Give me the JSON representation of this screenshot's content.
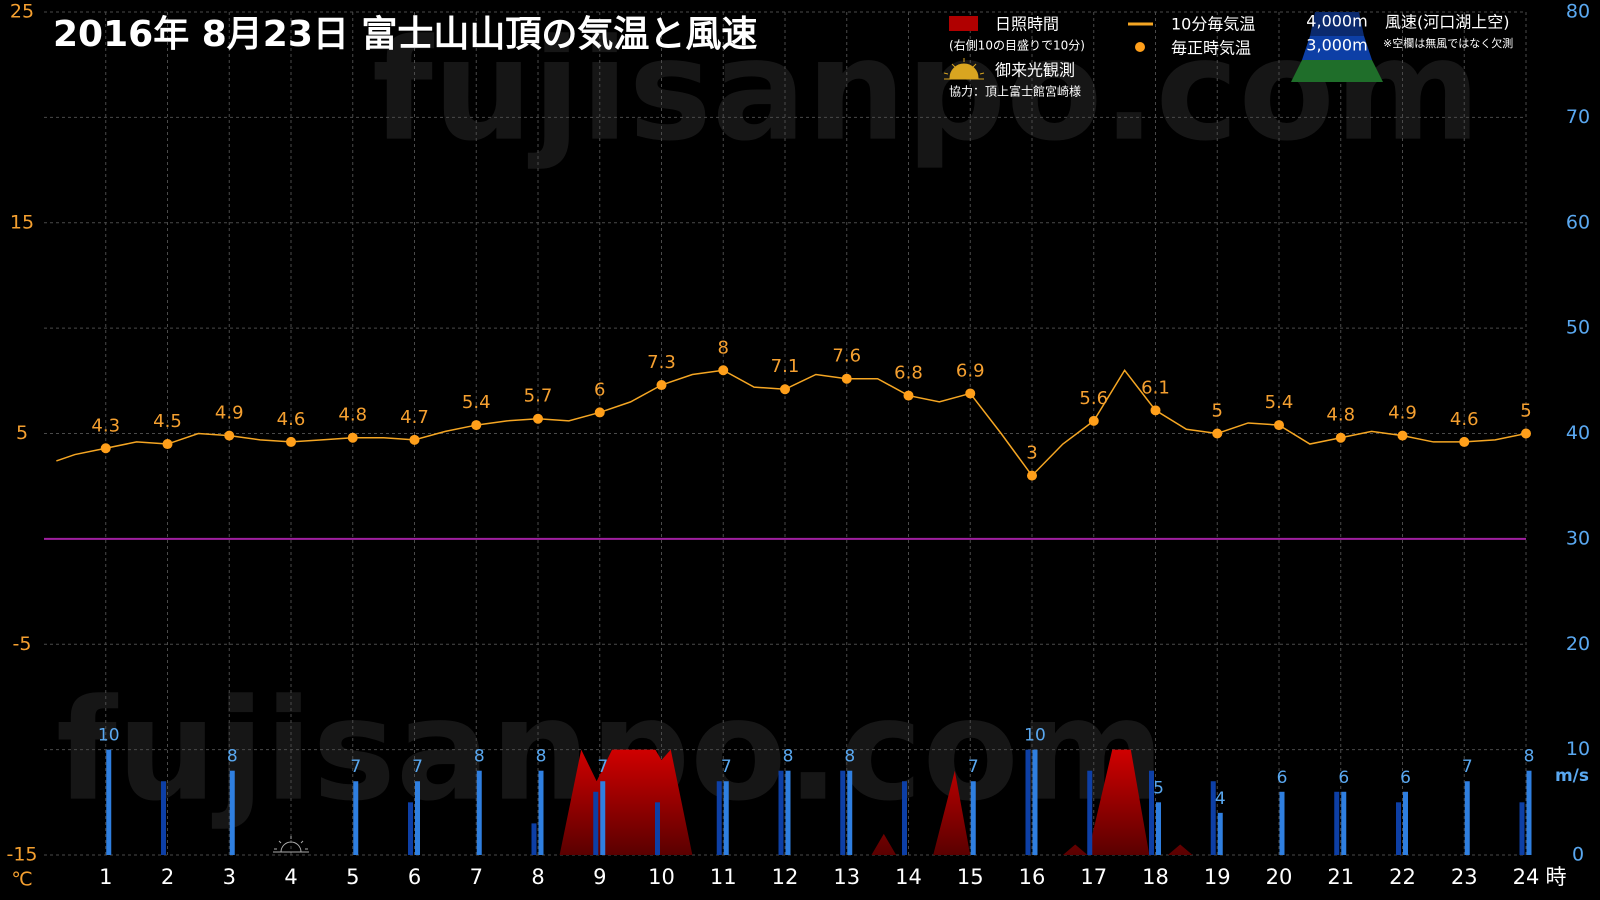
{
  "chart_data": {
    "type": "combo",
    "title": "2016年  8月23日   富士山山頂の気温と風速",
    "watermark": "fujisanpo.com",
    "xlim": [
      0,
      24
    ],
    "xticks": [
      1,
      2,
      3,
      4,
      5,
      6,
      7,
      8,
      9,
      10,
      11,
      12,
      13,
      14,
      15,
      16,
      17,
      18,
      19,
      20,
      21,
      22,
      23,
      24
    ],
    "x_unit": "時",
    "ylim": [
      -15,
      25
    ],
    "yticks": [
      -15,
      -5,
      5,
      15,
      25
    ],
    "y_unit": "℃",
    "y2lim": [
      0,
      80
    ],
    "y2ticks": [
      0,
      10,
      20,
      30,
      40,
      50,
      60,
      70,
      80
    ],
    "y2_unit": "m/s",
    "grid": true,
    "zero_line": 0,
    "sunrise_x": 4,
    "sunshine_note": "(右側10の目盛りで10分)",
    "sunrise_label": "御来光観測",
    "credit": "協力：頂上富士館宮崎様",
    "wind_label": "風速(河口湖上空)",
    "wind_note": "※空欄は無風ではなく欠測",
    "series": [
      {
        "name": "10分毎気温",
        "type": "line",
        "color": "#f5a623",
        "x": [
          0.2,
          0.5,
          1,
          1.5,
          2,
          2.5,
          3,
          3.5,
          4,
          4.5,
          5,
          5.5,
          6,
          6.5,
          7,
          7.5,
          8,
          8.5,
          9,
          9.5,
          10,
          10.5,
          11,
          11.5,
          12,
          12.5,
          13,
          13.5,
          14,
          14.5,
          15,
          15.5,
          16,
          16.5,
          17,
          17.5,
          18,
          18.5,
          19,
          19.5,
          20,
          20.5,
          21,
          21.5,
          22,
          22.5,
          23,
          23.5,
          24
        ],
        "values": [
          3.7,
          4.0,
          4.3,
          4.6,
          4.5,
          5.0,
          4.9,
          4.7,
          4.6,
          4.7,
          4.8,
          4.8,
          4.7,
          5.1,
          5.4,
          5.6,
          5.7,
          5.6,
          6.0,
          6.5,
          7.3,
          7.8,
          8.0,
          7.2,
          7.1,
          7.8,
          7.6,
          7.6,
          6.8,
          6.5,
          6.9,
          5.0,
          3.0,
          4.5,
          5.6,
          8.0,
          6.1,
          5.2,
          5.0,
          5.5,
          5.4,
          4.5,
          4.8,
          5.1,
          4.9,
          4.6,
          4.6,
          4.7,
          5.0
        ]
      },
      {
        "name": "毎正時気温",
        "type": "scatter",
        "color": "#ff9f1a",
        "x": [
          1,
          2,
          3,
          4,
          5,
          6,
          7,
          8,
          9,
          10,
          11,
          12,
          13,
          14,
          15,
          16,
          17,
          18,
          19,
          20,
          21,
          22,
          23,
          24
        ],
        "values": [
          4.3,
          4.5,
          4.9,
          4.6,
          4.8,
          4.7,
          5.4,
          5.7,
          6,
          7.3,
          8,
          7.1,
          7.6,
          6.8,
          6.9,
          3,
          5.6,
          6.1,
          5,
          5.4,
          4.8,
          4.9,
          4.6,
          5
        ]
      },
      {
        "name": "日照時間",
        "type": "area",
        "color": "#b00000",
        "axis": "y2",
        "x": [
          8.35,
          8.7,
          8.95,
          9.2,
          9.9,
          10.0,
          10.15,
          10.5,
          13.4,
          13.6,
          13.8,
          14.4,
          14.75,
          15.0,
          16.5,
          16.7,
          16.9,
          17.3,
          17.6,
          17.9,
          18.2,
          18.4,
          18.6
        ],
        "values": [
          0,
          10,
          7,
          10,
          10,
          9,
          10,
          0,
          0,
          2,
          0,
          0,
          8,
          0,
          0,
          1,
          0,
          10,
          10,
          0,
          0,
          1,
          0
        ]
      },
      {
        "name": "4,000m",
        "type": "bar",
        "color": "#0d3fa6",
        "axis": "y2",
        "x": [
          1,
          2,
          3,
          4,
          5,
          6,
          7,
          8,
          9,
          10,
          11,
          12,
          13,
          14,
          15,
          16,
          17,
          18,
          19,
          20,
          21,
          22,
          23,
          24
        ],
        "values": [
          null,
          7,
          null,
          null,
          null,
          5,
          null,
          3,
          6,
          5,
          7,
          8,
          8,
          7,
          null,
          10,
          8,
          8,
          7,
          null,
          6,
          5,
          null,
          5
        ]
      },
      {
        "name": "3,000m",
        "type": "bar",
        "color": "#2f7fe0",
        "axis": "y2",
        "labels": true,
        "x": [
          1,
          2,
          3,
          4,
          5,
          6,
          7,
          8,
          9,
          10,
          11,
          12,
          13,
          14,
          15,
          16,
          17,
          18,
          19,
          20,
          21,
          22,
          23,
          24
        ],
        "values": [
          10,
          null,
          8,
          null,
          7,
          7,
          8,
          8,
          7,
          null,
          7,
          8,
          8,
          null,
          7,
          10,
          null,
          5,
          4,
          6,
          6,
          6,
          7,
          8
        ]
      }
    ]
  }
}
